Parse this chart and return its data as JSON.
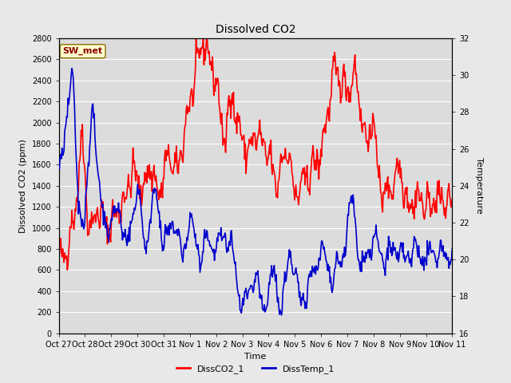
{
  "title": "Dissolved CO2",
  "xlabel": "Time",
  "ylabel_left": "Dissolved CO2 (ppm)",
  "ylabel_right": "Temperature",
  "annotation": "SW_met",
  "annotation_color": "#8B0000",
  "legend_labels": [
    "DissCO2_1",
    "DissTemp_1"
  ],
  "co2_color": "#FF0000",
  "temp_color": "#0000CC",
  "figure_bg_color": "#E8E8E8",
  "axes_bg_color": "#E8E8E8",
  "plot_bg_color": "#DCDCDC",
  "grid_color": "#FFFFFF",
  "ylim_left": [
    0,
    2800
  ],
  "ylim_right": [
    16,
    32
  ],
  "yticks_left": [
    0,
    200,
    400,
    600,
    800,
    1000,
    1200,
    1400,
    1600,
    1800,
    2000,
    2200,
    2400,
    2600,
    2800
  ],
  "yticks_right": [
    16,
    18,
    20,
    22,
    24,
    26,
    28,
    30,
    32
  ],
  "x_tick_labels": [
    "Oct 27",
    "Oct 28",
    "Oct 29",
    "Oct 30",
    "Oct 31",
    "Nov 1",
    "Nov 2",
    "Nov 3",
    "Nov 4",
    "Nov 5",
    "Nov 6",
    "Nov 7",
    "Nov 8",
    "Nov 9",
    "Nov 10",
    "Nov 11"
  ],
  "linewidth": 1.2
}
